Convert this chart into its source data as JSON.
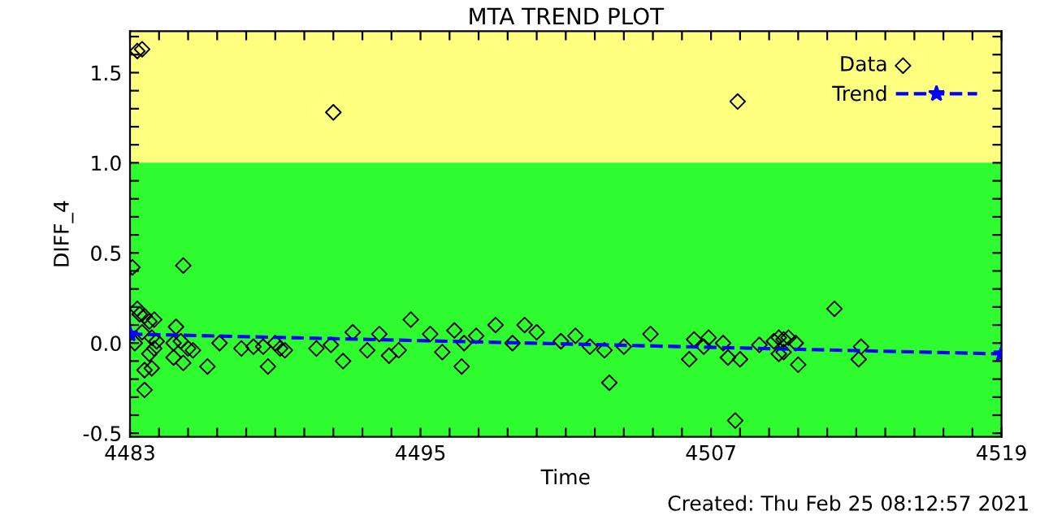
{
  "chart_data": {
    "type": "scatter",
    "title": "MTA TREND PLOT",
    "xlabel": "Time",
    "ylabel": "DIFF_4",
    "xlim": [
      4483,
      4519
    ],
    "ylim": [
      -0.52,
      1.73
    ],
    "xticks": [
      4483,
      {
        "value": 4484.2,
        "label": null
      },
      {
        "value": 4485.4,
        "label": null
      },
      {
        "value": 4486.6,
        "label": null
      },
      {
        "value": 4487.8,
        "label": null
      },
      {
        "value": 4489,
        "label": null
      },
      {
        "value": 4490.2,
        "label": null
      },
      {
        "value": 4491.4,
        "label": null
      },
      {
        "value": 4492.6,
        "label": null
      },
      {
        "value": 4493.8,
        "label": null
      },
      4495,
      {
        "value": 4496.2,
        "label": null
      },
      {
        "value": 4497.4,
        "label": null
      },
      {
        "value": 4498.6,
        "label": null
      },
      {
        "value": 4499.8,
        "label": null
      },
      {
        "value": 4501,
        "label": null
      },
      {
        "value": 4502.2,
        "label": null
      },
      {
        "value": 4503.4,
        "label": null
      },
      {
        "value": 4504.6,
        "label": null
      },
      {
        "value": 4505.8,
        "label": null
      },
      4507,
      {
        "value": 4508.2,
        "label": null
      },
      {
        "value": 4509.4,
        "label": null
      },
      {
        "value": 4510.6,
        "label": null
      },
      {
        "value": 4511.8,
        "label": null
      },
      {
        "value": 4513,
        "label": null
      },
      {
        "value": 4514.2,
        "label": null
      },
      {
        "value": 4515.4,
        "label": null
      },
      {
        "value": 4516.6,
        "label": null
      },
      {
        "value": 4517.8,
        "label": null
      },
      4519
    ],
    "yticks": [
      -0.5,
      {
        "value": -0.4,
        "label": null
      },
      {
        "value": -0.3,
        "label": null
      },
      {
        "value": -0.2,
        "label": null
      },
      {
        "value": -0.1,
        "label": null
      },
      {
        "value": 0,
        "label": "0.0"
      },
      {
        "value": 0.1,
        "label": null
      },
      {
        "value": 0.2,
        "label": null
      },
      {
        "value": 0.3,
        "label": null
      },
      {
        "value": 0.4,
        "label": null
      },
      0.5,
      {
        "value": 0.6,
        "label": null
      },
      {
        "value": 0.7,
        "label": null
      },
      {
        "value": 0.8,
        "label": null
      },
      {
        "value": 0.9,
        "label": null
      },
      {
        "value": 1,
        "label": "1.0"
      },
      {
        "value": 1.1,
        "label": null
      },
      {
        "value": 1.2,
        "label": null
      },
      {
        "value": 1.3,
        "label": null
      },
      {
        "value": 1.4,
        "label": null
      },
      1.5,
      {
        "value": 1.6,
        "label": null
      },
      {
        "value": 1.7,
        "label": null
      }
    ],
    "bands": [
      {
        "axis": "y",
        "from": 1.0,
        "to": 1.73,
        "color": "#ffff80"
      },
      {
        "axis": "y",
        "from": -0.52,
        "to": 1.0,
        "color": "#2efc2e"
      }
    ],
    "legend": "top right",
    "grid": false,
    "series": [
      {
        "name": "Data",
        "type": "scatter",
        "marker": "diamond",
        "color": "#000000",
        "x": [
          4483.3,
          4483.5,
          4491.4,
          4483.1,
          4485.2,
          4483.3,
          4483.4,
          4483.6,
          4483.8,
          4484.0,
          4483.5,
          4483.9,
          4484.1,
          4484.0,
          4483.8,
          4483.6,
          4483.9,
          4483.6,
          4483.2,
          4484.9,
          4484.8,
          4484.8,
          4485.2,
          4485.4,
          4485.6,
          4485.1,
          4486.2,
          4486.7,
          4487.6,
          4488.1,
          4488.5,
          4488.7,
          4489.0,
          4489.2,
          4489.4,
          4490.7,
          4491.3,
          4491.8,
          4492.2,
          4492.8,
          4493.3,
          4493.7,
          4494.1,
          4494.6,
          4495.4,
          4495.9,
          4496.4,
          4496.7,
          4496.8,
          4497.3,
          4498.1,
          4498.8,
          4499.3,
          4499.8,
          4500.8,
          4501.4,
          4502.0,
          4502.6,
          4502.8,
          4503.4,
          4504.5,
          4506.1,
          4506.3,
          4506.9,
          4506.7,
          4507.5,
          4507.7,
          4508.1,
          4508.0,
          4508.2,
          4509.0,
          4509.6,
          4509.8,
          4510.0,
          4510.2,
          4509.8,
          4510.0,
          4510.5,
          4510.6,
          4512.1,
          4513.2,
          4513.1
        ],
        "values": [
          1.62,
          1.63,
          1.28,
          0.42,
          0.43,
          0.19,
          0.16,
          0.15,
          0.12,
          0.13,
          0.06,
          0.03,
          0.01,
          -0.03,
          -0.06,
          -0.15,
          -0.14,
          -0.26,
          0.0,
          0.09,
          0.0,
          -0.08,
          -0.11,
          -0.03,
          -0.04,
          0.01,
          -0.13,
          0.0,
          -0.03,
          -0.02,
          -0.02,
          -0.13,
          0.0,
          -0.03,
          -0.04,
          -0.03,
          -0.01,
          -0.1,
          0.06,
          -0.04,
          0.05,
          -0.07,
          -0.04,
          0.13,
          0.05,
          -0.05,
          0.07,
          -0.13,
          0.0,
          0.04,
          0.1,
          0.0,
          0.1,
          0.06,
          0.01,
          0.04,
          -0.02,
          -0.04,
          -0.22,
          -0.02,
          0.05,
          -0.09,
          0.02,
          0.03,
          -0.02,
          0.0,
          -0.08,
          1.34,
          -0.43,
          -0.09,
          -0.01,
          0.01,
          0.03,
          0.02,
          0.03,
          -0.06,
          -0.05,
          0.0,
          -0.12,
          0.19,
          -0.02,
          -0.09
        ]
      },
      {
        "name": "Trend",
        "type": "line",
        "marker": "star",
        "line_style": "dashed",
        "color": "#0000ff",
        "x": [
          4483,
          4519
        ],
        "values": [
          0.05,
          -0.06
        ]
      }
    ],
    "annotations": [
      "Created: Thu Feb 25 08:12:57 2021"
    ]
  }
}
